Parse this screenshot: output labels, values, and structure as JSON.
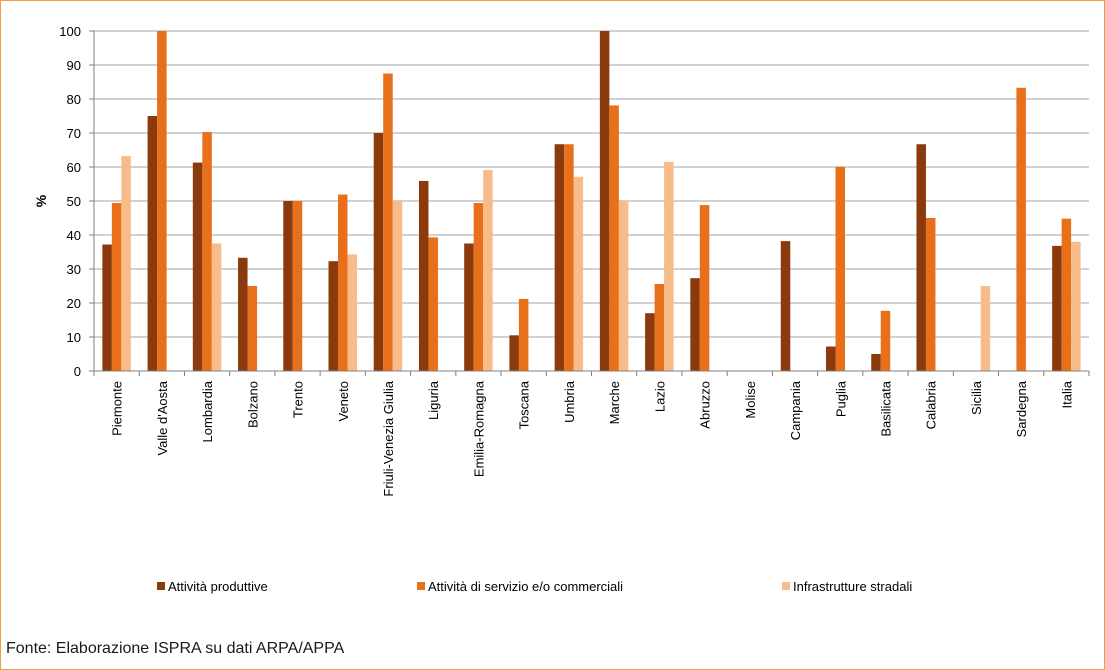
{
  "chart_data": {
    "type": "bar",
    "title": "",
    "xlabel": "",
    "ylabel": "%",
    "ylim": [
      0,
      100
    ],
    "yticks": [
      0,
      10,
      20,
      30,
      40,
      50,
      60,
      70,
      80,
      90,
      100
    ],
    "grid": "horizontal",
    "legend_position": "bottom",
    "categories": [
      "Piemonte",
      "Valle d'Aosta",
      "Lombardia",
      "Bolzano",
      "Trento",
      "Veneto",
      "Friuli-Venezia Giulia",
      "Liguria",
      "Emilia-Romagna",
      "Toscana",
      "Umbria",
      "Marche",
      "Lazio",
      "Abruzzo",
      "Molise",
      "Campania",
      "Puglia",
      "Basilicata",
      "Calabria",
      "Sicilia",
      "Sardegna",
      "Italia"
    ],
    "series": [
      {
        "name": "Attività produttive",
        "color": "#8B3A0E",
        "values": [
          37.2,
          75,
          61.3,
          33.3,
          50,
          32.3,
          70,
          55.9,
          37.5,
          10.5,
          66.7,
          100,
          17,
          27.3,
          0,
          38.2,
          7.2,
          5,
          66.7,
          0,
          0,
          36.8
        ]
      },
      {
        "name": "Attività di servizio e/o commerciali",
        "color": "#E8701A",
        "values": [
          49.4,
          100,
          70.3,
          25,
          50,
          51.9,
          87.5,
          39.3,
          49.4,
          21.2,
          66.7,
          78.1,
          25.6,
          48.8,
          0,
          0,
          60.1,
          17.7,
          45,
          0,
          83.3,
          44.8
        ]
      },
      {
        "name": "Infrastrutture stradali",
        "color": "#F8BC8A",
        "values": [
          63.2,
          0,
          37.5,
          0,
          0,
          34.3,
          50,
          0,
          59.1,
          0,
          57.1,
          50,
          61.5,
          0,
          0,
          0,
          0,
          0,
          0,
          25,
          0,
          38
        ]
      }
    ]
  },
  "source_note": "Fonte: Elaborazione ISPRA su dati ARPA/APPA"
}
